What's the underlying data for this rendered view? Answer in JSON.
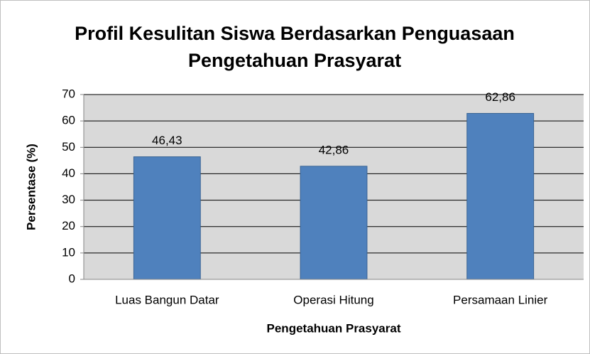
{
  "chart_data": {
    "type": "bar",
    "title": "Profil Kesulitan Siswa Berdasarkan Penguasaan Pengetahuan Prasyarat",
    "x_label": "Pengetahuan Prasyarat",
    "y_label": "Persentase (%)",
    "categories": [
      "Luas Bangun Datar",
      "Operasi Hitung",
      "Persamaan Linier"
    ],
    "values": [
      46.43,
      42.86,
      62.86
    ],
    "value_labels": [
      "46,43",
      "42,86",
      "62,86"
    ],
    "color": "#4f81bd",
    "ylim": [
      0,
      70
    ],
    "yticks": [
      0,
      10,
      20,
      30,
      40,
      50,
      60,
      70
    ],
    "grid": true
  }
}
